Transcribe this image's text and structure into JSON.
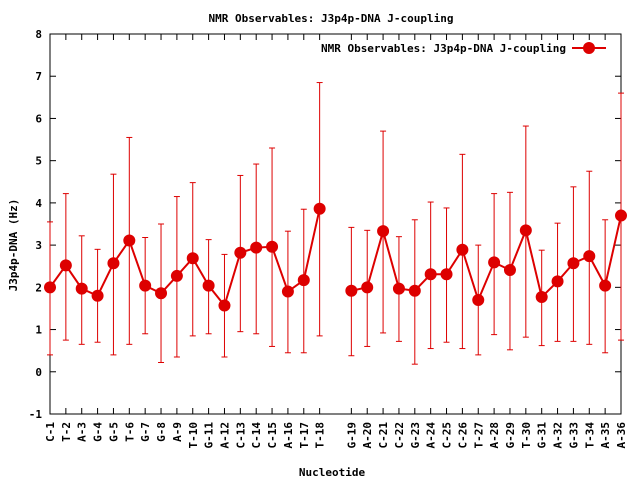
{
  "chart_data": {
    "type": "line",
    "title": "NMR Observables: J3p4p-DNA J-coupling",
    "xlabel": "Nucleotide",
    "ylabel": "J3p4p-DNA (Hz)",
    "ylim": [
      -1,
      8
    ],
    "yticks": [
      -1,
      0,
      1,
      2,
      3,
      4,
      5,
      6,
      7,
      8
    ],
    "grid": false,
    "legend_position": "top-right",
    "color": "#dd0000",
    "categories": [
      "C-1",
      "T-2",
      "A-3",
      "G-4",
      "G-5",
      "T-6",
      "G-7",
      "G-8",
      "A-9",
      "T-10",
      "G-11",
      "A-12",
      "C-13",
      "C-14",
      "C-15",
      "A-16",
      "T-17",
      "T-18",
      "",
      "G-19",
      "A-20",
      "C-21",
      "C-22",
      "G-23",
      "A-24",
      "C-25",
      "C-26",
      "T-27",
      "A-28",
      "G-29",
      "T-30",
      "G-31",
      "A-32",
      "G-33",
      "T-34",
      "A-35",
      "A-36"
    ],
    "series": [
      {
        "name": "NMR Observables: J3p4p-DNA J-coupling",
        "values": [
          2.0,
          2.52,
          1.97,
          1.8,
          2.57,
          3.11,
          2.04,
          1.86,
          2.27,
          2.69,
          2.04,
          1.57,
          2.82,
          2.94,
          2.96,
          1.9,
          2.17,
          3.86,
          null,
          1.92,
          2.0,
          3.33,
          1.97,
          1.92,
          2.31,
          2.31,
          2.89,
          1.7,
          2.59,
          2.41,
          3.35,
          1.77,
          2.14,
          2.57,
          2.74,
          2.04,
          3.7
        ],
        "err_low": [
          0.4,
          0.75,
          0.65,
          0.7,
          0.4,
          0.65,
          0.9,
          0.22,
          0.35,
          0.85,
          0.9,
          0.35,
          0.95,
          0.9,
          0.6,
          0.45,
          0.45,
          0.85,
          null,
          0.38,
          0.6,
          0.92,
          0.72,
          0.18,
          0.55,
          0.7,
          0.55,
          0.4,
          0.88,
          0.52,
          0.82,
          0.62,
          0.72,
          0.72,
          0.65,
          0.45,
          0.75
        ],
        "err_high": [
          3.55,
          4.22,
          3.22,
          2.9,
          4.68,
          5.55,
          3.18,
          3.5,
          4.15,
          4.48,
          3.13,
          2.78,
          4.65,
          4.92,
          5.3,
          3.33,
          3.85,
          6.85,
          null,
          3.42,
          3.35,
          5.7,
          3.2,
          3.6,
          4.02,
          3.88,
          5.15,
          3.0,
          4.22,
          4.25,
          5.82,
          2.88,
          3.52,
          4.38,
          4.75,
          3.6,
          6.6
        ]
      }
    ]
  }
}
